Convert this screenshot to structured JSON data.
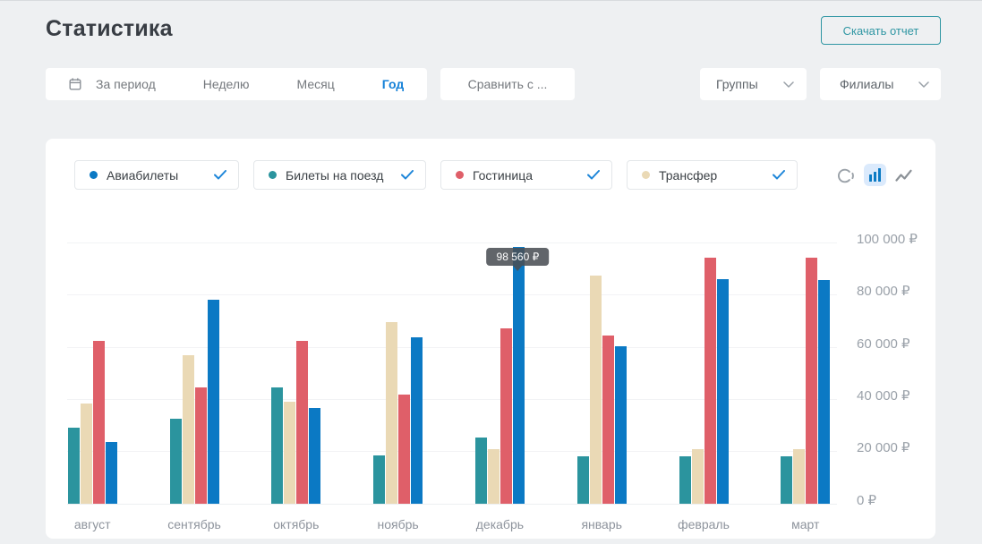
{
  "page": {
    "title": "Статистика"
  },
  "header": {
    "download_button": "Скачать отчет"
  },
  "filters": {
    "period_tabs": [
      {
        "label": "За период",
        "active": false
      },
      {
        "label": "Неделю",
        "active": false
      },
      {
        "label": "Месяц",
        "active": false
      },
      {
        "label": "Год",
        "active": true
      }
    ],
    "compare_button": "Сравнить с ...",
    "groups_dropdown": "Группы",
    "branches_dropdown": "Филиалы"
  },
  "legend": {
    "items": [
      {
        "label": "Авиабилеты",
        "color": "#0b79c4",
        "checked": true
      },
      {
        "label": "Билеты на поезд",
        "color": "#2b949e",
        "checked": true
      },
      {
        "label": "Гостиница",
        "color": "#df5f69",
        "checked": true
      },
      {
        "label": "Трансфер",
        "color": "#ead9b5",
        "checked": true
      }
    ],
    "view_modes": [
      "pie-chart",
      "bar-chart",
      "line-chart"
    ],
    "active_view": "bar-chart"
  },
  "chart_data": {
    "type": "bar",
    "categories": [
      "август",
      "сентябрь",
      "октябрь",
      "ноябрь",
      "декабрь",
      "январь",
      "февраль",
      "март"
    ],
    "series": [
      {
        "name": "Билеты на поезд",
        "color": "#2b949e",
        "values": [
          29200,
          32600,
          44600,
          18500,
          25500,
          18200,
          18200,
          18200
        ]
      },
      {
        "name": "Трансфер",
        "color": "#ead9b5",
        "values": [
          38400,
          56800,
          39100,
          69800,
          21000,
          87500,
          20800,
          21000
        ]
      },
      {
        "name": "Гостиница",
        "color": "#df5f69",
        "values": [
          62400,
          44600,
          62400,
          41900,
          67400,
          64600,
          94300,
          94400
        ]
      },
      {
        "name": "Авиабилеты",
        "color": "#0b79c4",
        "values": [
          23500,
          78200,
          36700,
          63700,
          98560,
          60500,
          86000,
          85900
        ]
      }
    ],
    "ylim": [
      0,
      100000
    ],
    "y_ticks": [
      {
        "value": 0,
        "label": "0 ₽"
      },
      {
        "value": 20000,
        "label": "20 000 ₽"
      },
      {
        "value": 40000,
        "label": "40 000 ₽"
      },
      {
        "value": 60000,
        "label": "60 000 ₽"
      },
      {
        "value": 80000,
        "label": "80 000 ₽"
      },
      {
        "value": 100000,
        "label": "100 000 ₽"
      }
    ],
    "grid": true,
    "legend_position": "top",
    "tooltip": {
      "category": "декабрь",
      "series": "Авиабилеты",
      "value": 98560,
      "label": "98 560 ₽"
    }
  }
}
